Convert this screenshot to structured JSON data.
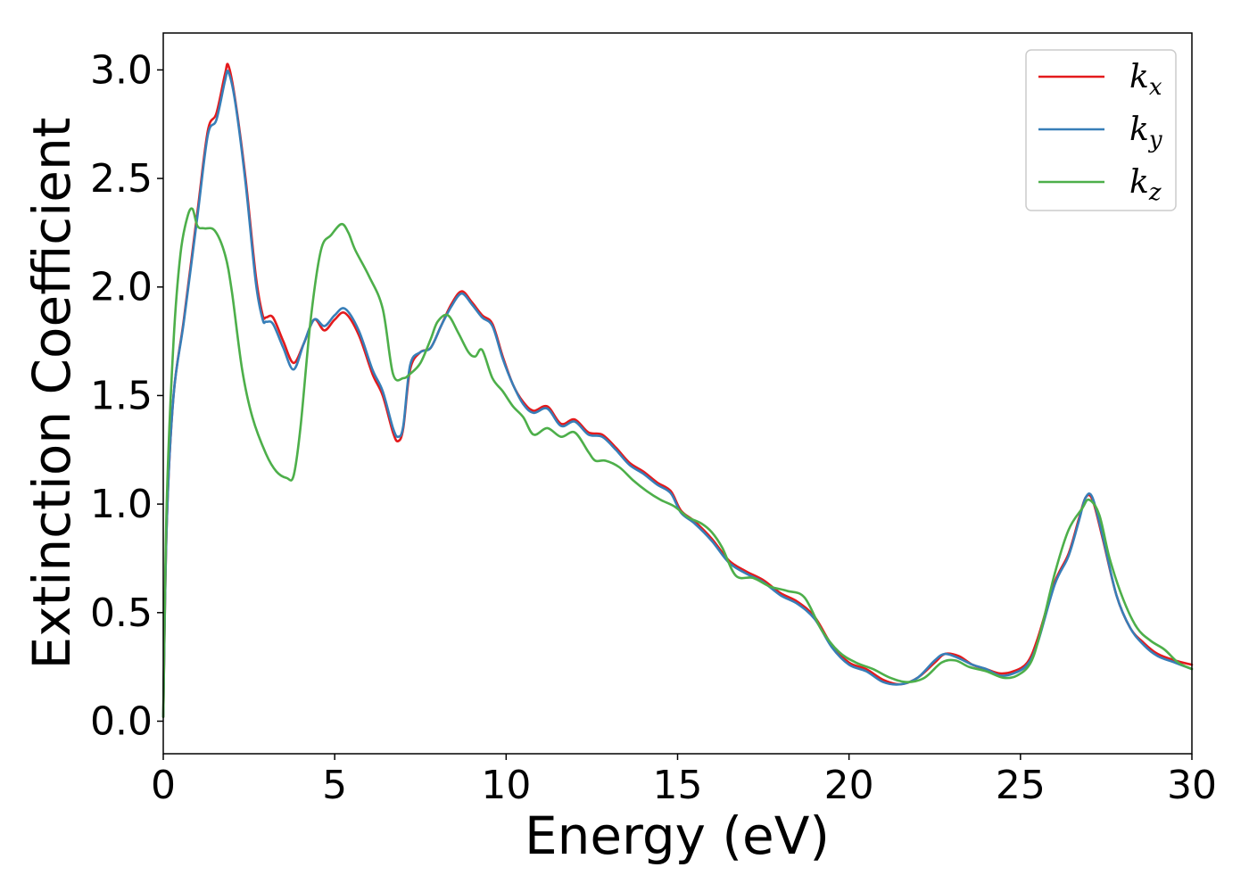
{
  "chart_data": {
    "type": "line",
    "title": "",
    "xlabel": "Energy (eV)",
    "ylabel": "Extinction Coefficient",
    "xlim": [
      0,
      30
    ],
    "ylim": [
      -0.15,
      3.17
    ],
    "xticks": [
      0,
      5,
      10,
      15,
      20,
      25,
      30
    ],
    "xtick_labels": [
      "0",
      "5",
      "10",
      "15",
      "20",
      "25",
      "30"
    ],
    "yticks": [
      0.0,
      0.5,
      1.0,
      1.5,
      2.0,
      2.5,
      3.0
    ],
    "ytick_labels": [
      "0.0",
      "0.5",
      "1.0",
      "1.5",
      "2.0",
      "2.5",
      "3.0"
    ],
    "grid": false,
    "legend_position": "top-right",
    "series": [
      {
        "name": "k_x",
        "label_base": "k",
        "label_sub": "x",
        "color": "#e41a1c",
        "x": [
          0,
          0.1,
          0.3,
          0.6,
          1.0,
          1.3,
          1.55,
          1.8,
          1.9,
          2.1,
          2.4,
          2.7,
          2.9,
          3.0,
          3.2,
          3.5,
          3.8,
          4.1,
          4.4,
          4.7,
          5.0,
          5.3,
          5.7,
          6.1,
          6.4,
          6.7,
          6.85,
          7.0,
          7.2,
          7.5,
          7.8,
          8.1,
          8.4,
          8.7,
          9.0,
          9.3,
          9.6,
          9.9,
          10.2,
          10.5,
          10.8,
          11.2,
          11.6,
          12.0,
          12.4,
          12.8,
          13.2,
          13.6,
          14.0,
          14.4,
          14.8,
          15.1,
          15.5,
          16.0,
          16.5,
          17.0,
          17.5,
          18.0,
          18.5,
          19.0,
          19.5,
          20.0,
          20.5,
          21.0,
          21.5,
          22.0,
          22.5,
          22.8,
          23.2,
          23.6,
          24.0,
          24.4,
          24.8,
          25.2,
          25.5,
          26.0,
          26.4,
          26.7,
          26.9,
          27.1,
          27.4,
          27.8,
          28.2,
          28.6,
          29.0,
          29.5,
          30.0
        ],
        "y": [
          0.02,
          0.9,
          1.5,
          1.85,
          2.35,
          2.72,
          2.8,
          2.98,
          3.02,
          2.86,
          2.5,
          2.05,
          1.87,
          1.86,
          1.86,
          1.75,
          1.65,
          1.74,
          1.85,
          1.8,
          1.85,
          1.88,
          1.78,
          1.6,
          1.5,
          1.33,
          1.29,
          1.35,
          1.62,
          1.7,
          1.72,
          1.82,
          1.92,
          1.98,
          1.93,
          1.87,
          1.83,
          1.68,
          1.55,
          1.47,
          1.43,
          1.45,
          1.37,
          1.39,
          1.33,
          1.32,
          1.26,
          1.19,
          1.15,
          1.1,
          1.06,
          0.97,
          0.92,
          0.84,
          0.74,
          0.69,
          0.65,
          0.59,
          0.55,
          0.48,
          0.35,
          0.27,
          0.24,
          0.19,
          0.17,
          0.2,
          0.27,
          0.31,
          0.3,
          0.26,
          0.24,
          0.22,
          0.23,
          0.27,
          0.38,
          0.64,
          0.77,
          0.93,
          1.03,
          1.02,
          0.84,
          0.58,
          0.43,
          0.36,
          0.31,
          0.28,
          0.26
        ]
      },
      {
        "name": "k_y",
        "label_base": "k",
        "label_sub": "y",
        "color": "#377eb8",
        "x": [
          0,
          0.1,
          0.3,
          0.6,
          1.0,
          1.3,
          1.55,
          1.8,
          1.9,
          2.1,
          2.4,
          2.7,
          2.9,
          3.0,
          3.2,
          3.5,
          3.8,
          4.1,
          4.4,
          4.7,
          5.0,
          5.3,
          5.7,
          6.1,
          6.4,
          6.7,
          6.85,
          7.0,
          7.2,
          7.5,
          7.8,
          8.1,
          8.4,
          8.7,
          9.0,
          9.3,
          9.6,
          9.9,
          10.2,
          10.5,
          10.8,
          11.2,
          11.6,
          12.0,
          12.4,
          12.8,
          13.2,
          13.6,
          14.0,
          14.4,
          14.8,
          15.1,
          15.5,
          16.0,
          16.5,
          17.0,
          17.5,
          18.0,
          18.5,
          19.0,
          19.5,
          20.0,
          20.5,
          21.0,
          21.5,
          22.0,
          22.5,
          22.8,
          23.2,
          23.6,
          24.0,
          24.4,
          24.8,
          25.2,
          25.5,
          26.0,
          26.4,
          26.7,
          26.9,
          27.1,
          27.4,
          27.8,
          28.2,
          28.6,
          29.0,
          29.5,
          30.0
        ],
        "y": [
          0.02,
          0.9,
          1.5,
          1.84,
          2.33,
          2.7,
          2.77,
          2.95,
          2.99,
          2.85,
          2.48,
          2.02,
          1.85,
          1.84,
          1.83,
          1.72,
          1.62,
          1.74,
          1.85,
          1.82,
          1.87,
          1.9,
          1.8,
          1.62,
          1.52,
          1.35,
          1.31,
          1.36,
          1.64,
          1.7,
          1.72,
          1.82,
          1.91,
          1.97,
          1.92,
          1.86,
          1.82,
          1.67,
          1.55,
          1.46,
          1.42,
          1.44,
          1.36,
          1.38,
          1.32,
          1.31,
          1.25,
          1.18,
          1.14,
          1.09,
          1.05,
          0.96,
          0.91,
          0.83,
          0.73,
          0.68,
          0.64,
          0.58,
          0.54,
          0.47,
          0.34,
          0.26,
          0.23,
          0.18,
          0.17,
          0.2,
          0.28,
          0.31,
          0.29,
          0.26,
          0.24,
          0.21,
          0.22,
          0.26,
          0.36,
          0.63,
          0.76,
          0.92,
          1.03,
          1.03,
          0.85,
          0.58,
          0.43,
          0.35,
          0.3,
          0.27,
          0.24
        ]
      },
      {
        "name": "k_z",
        "label_base": "k",
        "label_sub": "z",
        "color": "#4daf4a",
        "x": [
          0,
          0.1,
          0.3,
          0.5,
          0.7,
          0.85,
          1.0,
          1.2,
          1.5,
          1.8,
          2.0,
          2.3,
          2.6,
          3.0,
          3.3,
          3.6,
          3.8,
          4.0,
          4.3,
          4.6,
          4.9,
          5.2,
          5.4,
          5.6,
          6.0,
          6.4,
          6.7,
          7.0,
          7.2,
          7.5,
          7.8,
          8.0,
          8.3,
          8.6,
          8.9,
          9.1,
          9.3,
          9.6,
          9.9,
          10.2,
          10.5,
          10.8,
          11.2,
          11.6,
          12.0,
          12.4,
          12.6,
          12.9,
          13.3,
          13.7,
          14.1,
          14.5,
          14.9,
          15.3,
          15.7,
          16.0,
          16.3,
          16.7,
          17.2,
          17.7,
          18.2,
          18.7,
          19.2,
          19.7,
          20.2,
          20.7,
          21.2,
          21.7,
          22.2,
          22.7,
          23.1,
          23.5,
          24.0,
          24.5,
          24.9,
          25.3,
          25.6,
          26.0,
          26.4,
          26.8,
          27.0,
          27.3,
          27.6,
          28.0,
          28.4,
          28.8,
          29.2,
          29.6,
          30.0
        ],
        "y": [
          0.02,
          1.0,
          1.75,
          2.15,
          2.32,
          2.36,
          2.28,
          2.27,
          2.26,
          2.15,
          1.98,
          1.62,
          1.4,
          1.23,
          1.15,
          1.12,
          1.13,
          1.35,
          1.85,
          2.17,
          2.24,
          2.29,
          2.25,
          2.17,
          2.05,
          1.9,
          1.6,
          1.58,
          1.6,
          1.65,
          1.76,
          1.84,
          1.87,
          1.79,
          1.7,
          1.68,
          1.71,
          1.58,
          1.52,
          1.45,
          1.4,
          1.32,
          1.35,
          1.31,
          1.33,
          1.24,
          1.2,
          1.2,
          1.17,
          1.11,
          1.06,
          1.02,
          0.99,
          0.94,
          0.91,
          0.87,
          0.8,
          0.67,
          0.66,
          0.62,
          0.6,
          0.57,
          0.42,
          0.32,
          0.27,
          0.24,
          0.2,
          0.18,
          0.2,
          0.27,
          0.28,
          0.25,
          0.23,
          0.2,
          0.21,
          0.27,
          0.42,
          0.68,
          0.88,
          0.98,
          1.02,
          0.95,
          0.75,
          0.56,
          0.43,
          0.37,
          0.33,
          0.27,
          0.24
        ]
      }
    ]
  }
}
